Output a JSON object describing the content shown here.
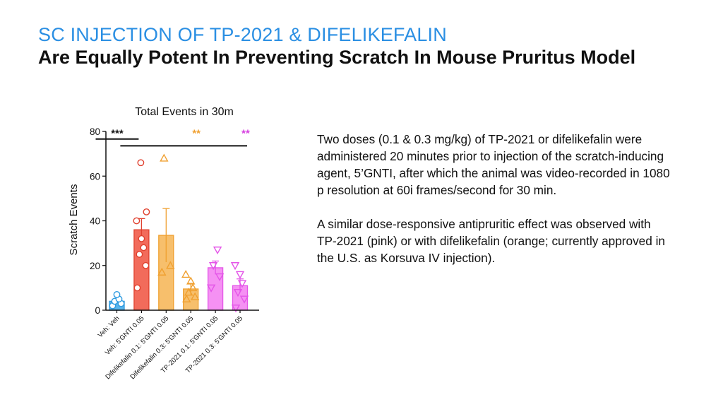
{
  "heading": {
    "line1": "SC INJECTION OF TP-2021 & DIFELIKEFALIN",
    "line2": "Are Equally Potent In Preventing Scratch In Mouse Pruritus Model"
  },
  "description": {
    "paragraph1": "Two doses (0.1 & 0.3 mg/kg) of TP-2021 or difelikefalin were administered 20 minutes prior to injection of the scratch-inducing agent, 5’GNTI, after which the animal was video-recorded in 1080 p resolution at 60i frames/second for 30 min.",
    "paragraph2": "A similar dose-responsive antipruritic effect was observed with TP-2021 (pink) or with difelikefalin (orange; currently approved in the U.S. as Korsuva IV injection)."
  },
  "chart_data": {
    "type": "bar",
    "title": "Total Events in 30m",
    "ylabel": "Scratch Events",
    "xlabel": "",
    "ylim": [
      0,
      80
    ],
    "yticks": [
      0,
      20,
      40,
      60,
      80
    ],
    "categories": [
      "Veh: Veh",
      "Veh: 5'GNTI 0.05",
      "Difelikefalin 0.1: 5'GNTI 0.05",
      "Difelikefalin 0.3: 5'GNTI 0.05",
      "TP-2021 0.1: 5'GNTI 0.05",
      "TP-2021 0.3: 5'GNTI 0.05"
    ],
    "values": [
      4,
      36,
      33.5,
      9.5,
      19,
      11
    ],
    "errors": [
      1,
      5,
      12,
      2.5,
      3,
      3
    ],
    "bar_colors": [
      "#5ab4ea",
      "#f26b5b",
      "#f7bf6c",
      "#f7bf6c",
      "#f591f3",
      "#f591f3"
    ],
    "marker_colors": [
      "#2f9be0",
      "#e0412f",
      "#f0a030",
      "#f0a030",
      "#e455e8",
      "#e455e8"
    ],
    "markers": [
      "circle",
      "circle",
      "triangle-up",
      "triangle-up",
      "triangle-down",
      "triangle-down"
    ],
    "points": [
      [
        2,
        3,
        4,
        5,
        7
      ],
      [
        10,
        20,
        25,
        28,
        32,
        40,
        44,
        66
      ],
      [
        17,
        20,
        68
      ],
      [
        5,
        6,
        8,
        10,
        13,
        16
      ],
      [
        10,
        15,
        20,
        27
      ],
      [
        1,
        5,
        8,
        12,
        16,
        20
      ]
    ],
    "significance": [
      {
        "label": "***",
        "color": "#111111",
        "from": 0,
        "to": 1,
        "y": 78.5
      },
      {
        "label": "**",
        "color": "#f0a030",
        "over": 3,
        "y": 78.5
      },
      {
        "label": "**",
        "color": "#d63fe0",
        "over": 5,
        "y": 78.5
      }
    ],
    "long_bracket": {
      "from": 1,
      "to": 5,
      "y": 74.5
    },
    "grid": false,
    "legend": "none"
  }
}
